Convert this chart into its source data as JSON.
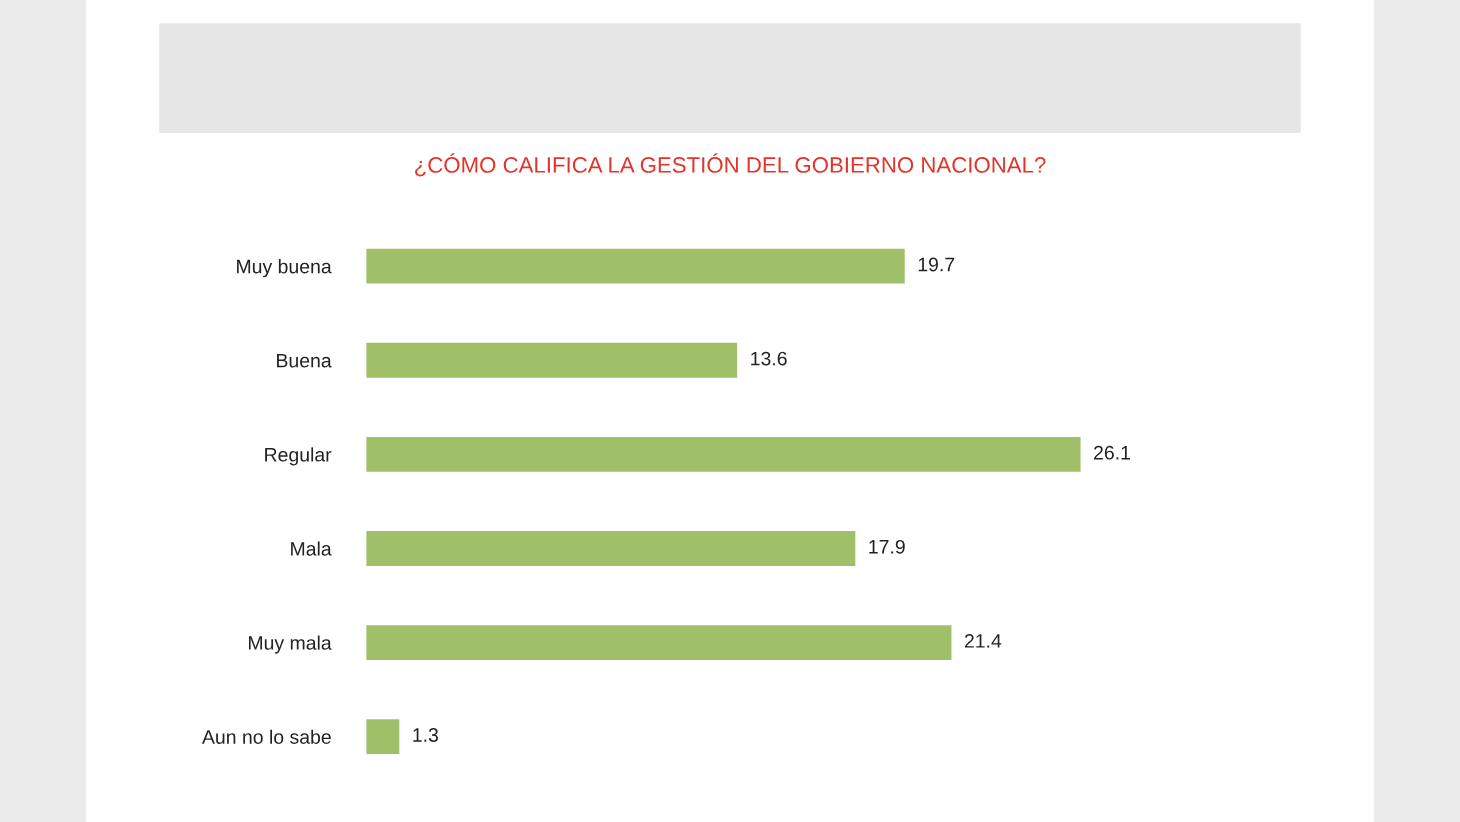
{
  "chart_data": {
    "type": "bar",
    "orientation": "horizontal",
    "title": "¿CÓMO CALIFICA LA GESTIÓN DEL GOBIERNO NACIONAL?",
    "categories": [
      "Muy buena",
      "Buena",
      "Regular",
      "Mala",
      "Muy mala",
      "Aun no lo sabe"
    ],
    "values": [
      19.7,
      13.6,
      26.1,
      17.9,
      21.4,
      1.3
    ],
    "color": "#9fc069",
    "data_labels": true,
    "grid": false,
    "legend": false
  }
}
